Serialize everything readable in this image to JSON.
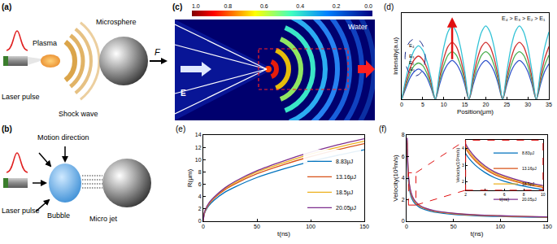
{
  "diagrams": {
    "a": {
      "label": "(a)",
      "texts": {
        "laser": "Laser pulse",
        "plasma": "Plasma",
        "microsphere": "Microsphere",
        "shock": "Shock wave",
        "force": "F"
      }
    },
    "b": {
      "label": "(b)",
      "texts": {
        "laser": "Laser pulse",
        "motion": "Motion direction",
        "bubble": "Bubble",
        "jet": "Micro jet"
      }
    },
    "c": {
      "label": "(c)",
      "medium": "Water",
      "field": "E",
      "colorbar": {
        "range": [
          0,
          1
        ],
        "ticks": [
          {
            "value": 1,
            "label": "1.0"
          },
          0.8,
          0.6,
          0.4,
          0.2,
          {
            "value": 0,
            "label": "0.0"
          }
        ]
      }
    }
  },
  "chart_data": [
    {
      "type": "line",
      "label": "(d)",
      "x_label": "Position(μm)",
      "y_label": "Intensity(a.u)",
      "x": [
        0,
        1,
        2,
        3,
        4,
        5,
        6,
        7,
        8,
        9,
        10,
        11,
        12,
        13,
        14,
        15,
        16,
        17,
        18,
        19,
        20,
        21,
        22,
        23,
        24,
        25,
        26,
        27,
        28,
        29,
        30,
        31,
        32,
        33,
        34,
        35
      ],
      "xlim": [
        0,
        35
      ],
      "xticks": [
        0,
        5,
        10,
        15,
        20,
        25,
        30,
        35
      ],
      "ylim": [
        0,
        1
      ],
      "grid": false,
      "tick_labels": "x",
      "annotations": [
        "E₄ > E₃ > E₂ > E₁"
      ],
      "series": [
        {
          "name": "E₁",
          "color": "#3355cc",
          "values": [
            0,
            0.13,
            0.25,
            0.32,
            0.35,
            0.32,
            0.25,
            0.13,
            0,
            0.17,
            0.32,
            0.41,
            0.45,
            0.41,
            0.32,
            0.17,
            0,
            0.17,
            0.32,
            0.41,
            0.45,
            0.41,
            0.32,
            0.17,
            0,
            0.17,
            0.32,
            0.41,
            0.45,
            0.41,
            0.32,
            0.17,
            0,
            0.17,
            0.32,
            0.41
          ]
        },
        {
          "name": "E₂",
          "color": "#4caf50",
          "values": [
            0,
            0.16,
            0.3,
            0.39,
            0.42,
            0.39,
            0.3,
            0.16,
            0,
            0.21,
            0.39,
            0.51,
            0.55,
            0.51,
            0.39,
            0.21,
            0,
            0.21,
            0.39,
            0.51,
            0.55,
            0.51,
            0.39,
            0.21,
            0,
            0.21,
            0.39,
            0.51,
            0.55,
            0.51,
            0.39,
            0.21,
            0,
            0.21,
            0.39,
            0.51
          ]
        },
        {
          "name": "E₃",
          "color": "#d03030",
          "values": [
            0,
            0.19,
            0.36,
            0.46,
            0.5,
            0.46,
            0.36,
            0.19,
            0,
            0.25,
            0.47,
            0.61,
            0.66,
            0.61,
            0.47,
            0.25,
            0,
            0.25,
            0.47,
            0.61,
            0.66,
            0.61,
            0.47,
            0.25,
            0,
            0.25,
            0.47,
            0.61,
            0.66,
            0.61,
            0.47,
            0.25,
            0,
            0.25,
            0.47,
            0.61
          ]
        },
        {
          "name": "E₄",
          "color": "#33c3d6",
          "values": [
            0,
            0.24,
            0.44,
            0.57,
            0.62,
            0.57,
            0.44,
            0.24,
            0,
            0.32,
            0.6,
            0.78,
            0.85,
            0.78,
            0.6,
            0.32,
            0,
            0.32,
            0.6,
            0.78,
            0.85,
            0.78,
            0.6,
            0.32,
            0,
            0.32,
            0.6,
            0.78,
            0.85,
            0.78,
            0.6,
            0.32,
            0,
            0.32,
            0.6,
            0.78
          ]
        }
      ]
    },
    {
      "type": "line",
      "label": "(e)",
      "x_label": "t(ns)",
      "y_label": "R(μm)",
      "x": [
        0,
        1,
        5,
        10,
        20,
        30,
        50,
        75,
        100,
        125,
        150
      ],
      "xlim": [
        0,
        150
      ],
      "xticks": [
        0,
        50,
        100,
        150
      ],
      "ylim": [
        0,
        14
      ],
      "yticks": [
        0,
        2,
        4,
        6,
        8,
        10,
        12,
        14
      ],
      "grid": false,
      "legend": "lower right",
      "series": [
        {
          "name": "8.83μJ",
          "color": "#0072bd",
          "values": [
            0,
            1.2,
            2.5,
            3.4,
            4.7,
            5.6,
            7.1,
            8.5,
            9.7,
            10.7,
            11.6
          ]
        },
        {
          "name": "13.16μJ",
          "color": "#d95319",
          "values": [
            0,
            1.3,
            2.7,
            3.7,
            5.1,
            6.1,
            7.7,
            9.2,
            10.5,
            11.6,
            12.6
          ]
        },
        {
          "name": "18.5μJ",
          "color": "#edb120",
          "values": [
            0,
            1.35,
            2.8,
            3.8,
            5.3,
            6.3,
            8.0,
            9.5,
            10.9,
            12.0,
            13.0
          ]
        },
        {
          "name": "20.05μJ",
          "color": "#7e2f8e",
          "values": [
            0,
            1.4,
            2.9,
            3.9,
            5.4,
            6.5,
            8.2,
            9.8,
            11.2,
            12.4,
            13.4
          ]
        }
      ]
    },
    {
      "type": "line",
      "label": "(f)",
      "x_label": "t(ns)",
      "y_label": "Velocity(10²m/s)",
      "x": [
        0.7,
        1,
        2,
        3,
        4,
        5,
        6,
        8,
        10,
        15,
        20,
        30,
        50,
        75,
        100,
        125,
        150
      ],
      "xlim": [
        0,
        150
      ],
      "xticks": [
        0,
        50,
        100,
        150
      ],
      "ylim": [
        0,
        8
      ],
      "yticks": [
        0,
        2,
        4,
        6,
        8
      ],
      "grid": false,
      "inset": {
        "x_label": "t(ns)",
        "y_label": "Velocity(10²m/s)",
        "xlim": [
          2,
          10
        ],
        "xticks": [
          2,
          4,
          6,
          8,
          10
        ],
        "ylim": [
          1.5,
          4.5
        ],
        "yticks": [
          2,
          3,
          4
        ],
        "legend": "upper right"
      },
      "series": [
        {
          "name": "8.83μJ",
          "color": "#0072bd",
          "values": [
            6.7,
            5.5,
            3.7,
            3.0,
            2.56,
            2.25,
            2.04,
            1.74,
            1.54,
            1.23,
            1.06,
            0.84,
            0.64,
            0.51,
            0.44,
            0.39,
            0.35
          ]
        },
        {
          "name": "13.16μJ",
          "color": "#d95319",
          "values": [
            7.28,
            5.97,
            4.02,
            3.26,
            2.78,
            2.44,
            2.22,
            1.89,
            1.67,
            1.34,
            1.15,
            0.91,
            0.7,
            0.55,
            0.48,
            0.42,
            0.38
          ]
        },
        {
          "name": "18.5μJ",
          "color": "#edb120",
          "values": [
            7.51,
            6.17,
            4.15,
            3.36,
            2.87,
            2.52,
            2.29,
            1.95,
            1.73,
            1.38,
            1.19,
            0.94,
            0.72,
            0.57,
            0.49,
            0.44,
            0.39
          ]
        },
        {
          "name": "20.05μJ",
          "color": "#7e2f8e",
          "values": [
            7.74,
            6.35,
            4.27,
            3.47,
            2.96,
            2.6,
            2.36,
            2.01,
            1.78,
            1.42,
            1.22,
            0.97,
            0.74,
            0.59,
            0.51,
            0.45,
            0.4
          ]
        }
      ]
    }
  ]
}
